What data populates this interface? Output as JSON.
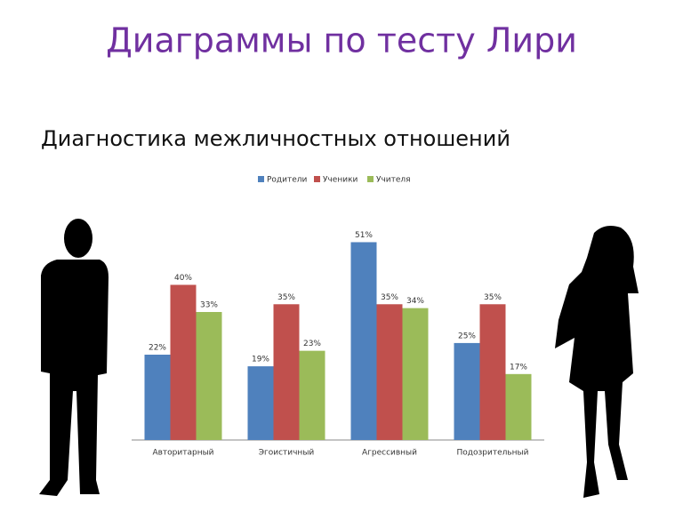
{
  "title": "Диаграммы по тесту Лири",
  "subtitle": "Диагностика межличностных отношений",
  "chart_data": {
    "type": "bar",
    "categories": [
      "Авторитарный",
      "Эгоистичный",
      "Агрессивный",
      "Подозрительный"
    ],
    "series": [
      {
        "name": "Родители",
        "color": "#4f81bd",
        "values": [
          22,
          19,
          51,
          25
        ],
        "value_labels": [
          "22%",
          "19%",
          "51%",
          "25%"
        ]
      },
      {
        "name": "Ученики",
        "color": "#c0504d",
        "values": [
          40,
          35,
          35,
          35
        ],
        "value_labels": [
          "40%",
          "35%",
          "35%",
          "35%"
        ]
      },
      {
        "name": "Учителя",
        "color": "#9bbb59",
        "values": [
          33,
          23,
          34,
          17
        ],
        "value_labels": [
          "33%",
          "23%",
          "34%",
          "17%"
        ]
      }
    ],
    "ylim": [
      0,
      55
    ],
    "legend": "top"
  }
}
